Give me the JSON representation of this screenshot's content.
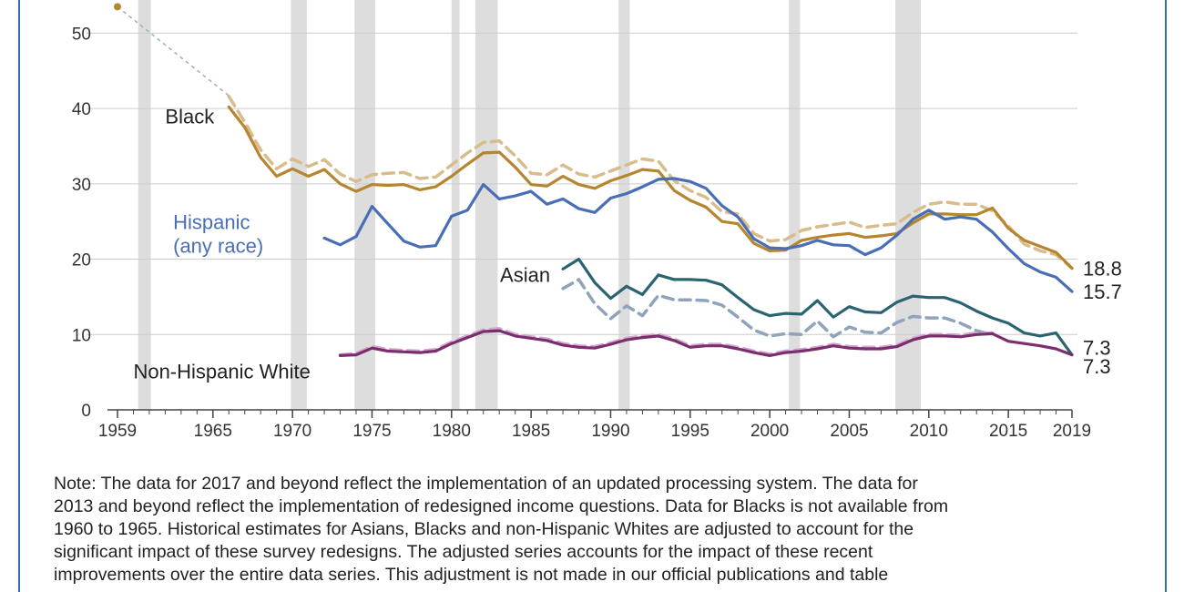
{
  "chart_data": {
    "type": "line",
    "title": "",
    "xlabel": "",
    "ylabel": "",
    "xlim": [
      1959,
      2019
    ],
    "ylim": [
      0,
      55
    ],
    "y_ticks": [
      0,
      10,
      20,
      30,
      40,
      50
    ],
    "x_ticks": [
      1959,
      1965,
      1970,
      1975,
      1980,
      1985,
      1990,
      1995,
      2000,
      2005,
      2010,
      2015,
      2019
    ],
    "grid": true,
    "recessions": [
      [
        1960.3,
        1961.1
      ],
      [
        1969.9,
        1970.9
      ],
      [
        1973.9,
        1975.2
      ],
      [
        1980.0,
        1980.5
      ],
      [
        1981.5,
        1982.9
      ],
      [
        1990.5,
        1991.2
      ],
      [
        2001.2,
        2001.9
      ],
      [
        2007.9,
        2009.5
      ]
    ],
    "colors": {
      "black": "#b5852f",
      "black_dashed": "#d9bc8c",
      "hispanic": "#4a6eb6",
      "asian": "#2a6472",
      "asian_dashed": "#8fa3ba",
      "white": "#7a2e6e",
      "white_dashed": "#d6a6cf",
      "recession": "#dddddd",
      "grid": "#cccccc",
      "axis": "#444444"
    },
    "series": [
      {
        "name": "Black",
        "key": "black",
        "style": "solid",
        "label_pos": "left",
        "x": [
          1966,
          1967,
          1968,
          1969,
          1970,
          1971,
          1972,
          1973,
          1974,
          1975,
          1976,
          1977,
          1978,
          1979,
          1980,
          1981,
          1982,
          1983,
          1984,
          1985,
          1986,
          1987,
          1988,
          1989,
          1990,
          1991,
          1992,
          1993,
          1994,
          1995,
          1996,
          1997,
          1998,
          1999,
          2000,
          2001,
          2002,
          2003,
          2004,
          2005,
          2006,
          2007,
          2008,
          2009,
          2010,
          2011,
          2012,
          2013,
          2014,
          2015,
          2016,
          2017,
          2018,
          2019
        ],
        "values": [
          40.2,
          37.5,
          33.5,
          31.0,
          32.0,
          31.0,
          31.9,
          30.0,
          29.0,
          29.9,
          29.8,
          29.9,
          29.2,
          29.6,
          31.0,
          32.6,
          34.1,
          34.2,
          32.2,
          29.9,
          29.7,
          31.0,
          29.9,
          29.4,
          30.4,
          31.1,
          31.9,
          31.7,
          29.1,
          27.8,
          26.9,
          25.0,
          24.7,
          22.1,
          21.1,
          21.2,
          22.5,
          22.9,
          23.2,
          23.4,
          22.9,
          23.1,
          23.4,
          24.8,
          26.0,
          26.0,
          25.9,
          25.9,
          26.8,
          24.1,
          22.5,
          21.7,
          20.9,
          18.8
        ]
      },
      {
        "name": "Black adjusted",
        "key": "black_dashed",
        "style": "dashed",
        "x": [
          1966,
          1967,
          1968,
          1969,
          1970,
          1971,
          1972,
          1973,
          1974,
          1975,
          1976,
          1977,
          1978,
          1979,
          1980,
          1981,
          1982,
          1983,
          1984,
          1985,
          1986,
          1987,
          1988,
          1989,
          1990,
          1991,
          1992,
          1993,
          1994,
          1995,
          1996,
          1997,
          1998,
          1999,
          2000,
          2001,
          2002,
          2003,
          2004,
          2005,
          2006,
          2007,
          2008,
          2009,
          2010,
          2011,
          2012,
          2013,
          2014,
          2015,
          2016,
          2017,
          2018,
          2019
        ],
        "values": [
          41.6,
          38.2,
          34.5,
          32.0,
          33.3,
          32.3,
          33.2,
          31.3,
          30.3,
          31.2,
          31.4,
          31.5,
          30.7,
          30.9,
          32.5,
          34.1,
          35.5,
          35.7,
          33.7,
          31.4,
          31.2,
          32.5,
          31.3,
          30.9,
          31.7,
          32.5,
          33.3,
          33.0,
          30.4,
          29.1,
          28.2,
          26.3,
          26.0,
          23.4,
          22.4,
          22.6,
          23.8,
          24.3,
          24.6,
          24.9,
          24.2,
          24.5,
          24.7,
          26.2,
          27.3,
          27.6,
          27.3,
          27.3,
          26.4,
          24.4,
          22.0,
          21.1,
          20.6,
          18.8
        ]
      },
      {
        "name": "Hispanic (any race)",
        "key": "hispanic",
        "style": "solid",
        "label_pos": "left",
        "x": [
          1972,
          1973,
          1974,
          1975,
          1976,
          1977,
          1978,
          1979,
          1980,
          1981,
          1982,
          1983,
          1984,
          1985,
          1986,
          1987,
          1988,
          1989,
          1990,
          1991,
          1992,
          1993,
          1994,
          1995,
          1996,
          1997,
          1998,
          1999,
          2000,
          2001,
          2002,
          2003,
          2004,
          2005,
          2006,
          2007,
          2008,
          2009,
          2010,
          2011,
          2012,
          2013,
          2014,
          2015,
          2016,
          2017,
          2018,
          2019
        ],
        "values": [
          22.8,
          21.9,
          23.0,
          27.0,
          24.7,
          22.4,
          21.6,
          21.8,
          25.7,
          26.5,
          29.9,
          28.0,
          28.4,
          29.0,
          27.3,
          28.0,
          26.7,
          26.2,
          28.1,
          28.7,
          29.6,
          30.6,
          30.7,
          30.3,
          29.4,
          27.1,
          25.6,
          22.7,
          21.5,
          21.4,
          21.8,
          22.5,
          21.9,
          21.8,
          20.6,
          21.5,
          23.2,
          25.3,
          26.5,
          25.3,
          25.6,
          25.3,
          23.6,
          21.4,
          19.4,
          18.3,
          17.6,
          15.7
        ]
      },
      {
        "name": "Asian",
        "key": "asian",
        "style": "solid",
        "label_pos": "left",
        "x": [
          1987,
          1988,
          1989,
          1990,
          1991,
          1992,
          1993,
          1994,
          1995,
          1996,
          1997,
          1998,
          1999,
          2000,
          2001,
          2002,
          2003,
          2004,
          2005,
          2006,
          2007,
          2008,
          2009,
          2010,
          2011,
          2012,
          2013,
          2014,
          2015,
          2016,
          2017,
          2018,
          2019
        ],
        "values": [
          18.7,
          20.0,
          16.9,
          14.8,
          16.4,
          15.3,
          17.9,
          17.3,
          17.3,
          17.2,
          16.6,
          14.9,
          13.3,
          12.5,
          12.8,
          12.7,
          14.5,
          12.3,
          13.7,
          13.0,
          12.9,
          14.3,
          15.1,
          14.9,
          14.9,
          14.2,
          13.1,
          12.2,
          11.5,
          10.2,
          9.8,
          10.2,
          7.3
        ]
      },
      {
        "name": "Asian adjusted",
        "key": "asian_dashed",
        "style": "dashed",
        "x": [
          1987,
          1988,
          1989,
          1990,
          1991,
          1992,
          1993,
          1994,
          1995,
          1996,
          1997,
          1998,
          1999,
          2000,
          2001,
          2002,
          2003,
          2004,
          2005,
          2006,
          2007,
          2008,
          2009,
          2010,
          2011,
          2012,
          2013,
          2014
        ],
        "values": [
          16.1,
          17.3,
          14.1,
          12.1,
          13.8,
          12.5,
          15.2,
          14.6,
          14.6,
          14.5,
          13.9,
          12.3,
          10.6,
          9.8,
          10.1,
          10.0,
          11.8,
          9.7,
          11.0,
          10.3,
          10.2,
          11.6,
          12.4,
          12.2,
          12.2,
          11.5,
          10.5,
          10.0
        ]
      },
      {
        "name": "Non-Hispanic White",
        "key": "white",
        "style": "solid",
        "label_pos": "left",
        "x": [
          1973,
          1974,
          1975,
          1976,
          1977,
          1978,
          1979,
          1980,
          1981,
          1982,
          1983,
          1984,
          1985,
          1986,
          1987,
          1988,
          1989,
          1990,
          1991,
          1992,
          1993,
          1994,
          1995,
          1996,
          1997,
          1998,
          1999,
          2000,
          2001,
          2002,
          2003,
          2004,
          2005,
          2006,
          2007,
          2008,
          2009,
          2010,
          2011,
          2012,
          2013,
          2014,
          2015,
          2016,
          2017,
          2018,
          2019
        ],
        "values": [
          7.2,
          7.3,
          8.2,
          7.8,
          7.7,
          7.6,
          7.8,
          8.8,
          9.6,
          10.4,
          10.5,
          9.8,
          9.5,
          9.2,
          8.6,
          8.3,
          8.2,
          8.7,
          9.3,
          9.6,
          9.8,
          9.2,
          8.3,
          8.5,
          8.5,
          8.1,
          7.6,
          7.2,
          7.6,
          7.8,
          8.1,
          8.5,
          8.2,
          8.1,
          8.1,
          8.4,
          9.3,
          9.8,
          9.8,
          9.7,
          10.0,
          10.1,
          9.1,
          8.8,
          8.5,
          8.1,
          7.3
        ]
      },
      {
        "name": "Non-Hispanic White adjusted",
        "key": "white_dashed",
        "style": "dashed",
        "x": [
          1973,
          1974,
          1975,
          1976,
          1977,
          1978,
          1979,
          1980,
          1981,
          1982,
          1983,
          1984,
          1985,
          1986,
          1987,
          1988,
          1989,
          1990,
          1991,
          1992,
          1993,
          1994,
          1995,
          1996,
          1997,
          1998,
          1999,
          2000,
          2001,
          2002,
          2003,
          2004,
          2005,
          2006,
          2007,
          2008,
          2009,
          2010,
          2011,
          2012,
          2013,
          2014
        ],
        "values": [
          7.3,
          7.5,
          8.4,
          8.0,
          7.9,
          7.8,
          8.0,
          9.0,
          9.8,
          10.6,
          10.8,
          10.0,
          9.7,
          9.4,
          8.8,
          8.5,
          8.4,
          8.9,
          9.5,
          9.8,
          10.0,
          9.4,
          8.5,
          8.7,
          8.7,
          8.3,
          7.8,
          7.4,
          7.8,
          8.0,
          8.3,
          8.7,
          8.4,
          8.3,
          8.3,
          8.6,
          9.5,
          10.0,
          10.0,
          9.9,
          10.2,
          10.2
        ]
      }
    ],
    "extra_point": {
      "x": 1959,
      "y": 53.5
    },
    "extra_dotted": {
      "x": [
        1959,
        1966
      ],
      "y": [
        53.5,
        41.7
      ]
    },
    "series_labels": [
      {
        "text": "Black",
        "x": 1962.0,
        "y": 38.0,
        "anchor": "start",
        "lines": [
          "Black"
        ]
      },
      {
        "text": "Hispanic (any race)",
        "x": 1962.5,
        "y": 24.0,
        "anchor": "start",
        "lines": [
          "Hispanic",
          "(any race)"
        ]
      },
      {
        "text": "Asian",
        "x": 1986.2,
        "y": 17.0,
        "anchor": "end",
        "lines": [
          "Asian"
        ]
      },
      {
        "text": "Non-Hispanic White",
        "x": 1960.0,
        "y": 4.2,
        "anchor": "start",
        "lines": [
          "Non-Hispanic White"
        ]
      }
    ],
    "end_labels": [
      {
        "text": "18.8",
        "y": 18.8
      },
      {
        "text": "15.7",
        "y": 15.7
      },
      {
        "text": "7.3",
        "y": 8.3
      },
      {
        "text": "7.3",
        "y": 5.8
      }
    ]
  },
  "note": "Note: The data for 2017 and beyond reflect the implementation of an updated processing system. The data for\n2013 and beyond reflect the implementation of redesigned income questions. Data for Blacks is not available from\n1960 to 1965. Historical estimates for Asians, Blacks and non-Hispanic Whites are adjusted to account for the\nsignificant impact of these survey redesigns. The adjusted series accounts for the impact of these recent\nimprovements over the entire data series. This adjustment is not made in our official publications and table"
}
